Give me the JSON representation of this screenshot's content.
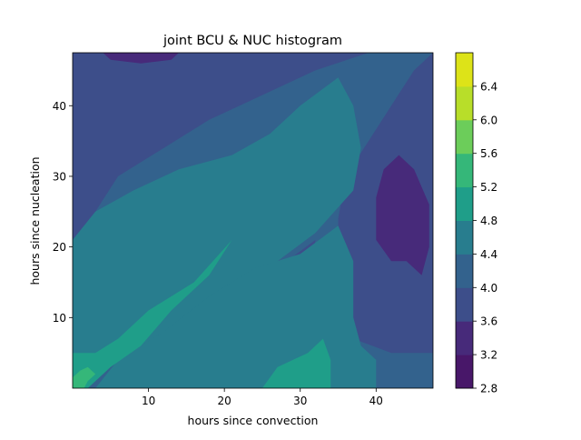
{
  "chart_data": {
    "type": "heatmap",
    "subtype": "filled-contour",
    "title": "joint BCU & NUC histogram",
    "xlabel": "hours since convection",
    "ylabel": "hours since nucleation",
    "xlim": [
      0,
      47.5
    ],
    "ylim": [
      0,
      47.5
    ],
    "xticks": [
      10,
      20,
      30,
      40
    ],
    "yticks": [
      10,
      20,
      30,
      40
    ],
    "colormap": "viridis",
    "levels": [
      2.8,
      3.2,
      3.6,
      4.0,
      4.4,
      4.8,
      5.2,
      5.6,
      6.0,
      6.4
    ],
    "level_colors": [
      "#481769",
      "#472a7a",
      "#3d4e8a",
      "#33628d",
      "#287d8e",
      "#1f9e89",
      "#35b779",
      "#6ccd5a",
      "#b8de29",
      "#dde318"
    ],
    "colorbar_ticks": [
      "2.8",
      "3.2",
      "3.6",
      "4.0",
      "4.4",
      "4.8",
      "5.2",
      "5.6",
      "6.0",
      "6.4"
    ],
    "regions": [
      {
        "band": "4.0-4.4",
        "points": [
          [
            0,
            0
          ],
          [
            47.5,
            0
          ],
          [
            47.5,
            47.5
          ],
          [
            0,
            47.5
          ]
        ]
      },
      {
        "band": "3.6-4.0",
        "points": [
          [
            0,
            47.5
          ],
          [
            39,
            47.5
          ],
          [
            32,
            45
          ],
          [
            24,
            41
          ],
          [
            18,
            38
          ],
          [
            12,
            34
          ],
          [
            6,
            30
          ],
          [
            3,
            25
          ],
          [
            0,
            21
          ]
        ]
      },
      {
        "band": "3.6-4.0",
        "points": [
          [
            47.5,
            5
          ],
          [
            47.5,
            47.5
          ],
          [
            45,
            45
          ],
          [
            42,
            40
          ],
          [
            39,
            35
          ],
          [
            36,
            30
          ],
          [
            35,
            24
          ],
          [
            35,
            18
          ],
          [
            35,
            12
          ],
          [
            37,
            7
          ],
          [
            42,
            5
          ]
        ]
      },
      {
        "band": "3.6-4.0",
        "points": [
          [
            11,
            6
          ],
          [
            15,
            9
          ],
          [
            21,
            13
          ],
          [
            27,
            17
          ],
          [
            32,
            21
          ],
          [
            31,
            15
          ],
          [
            28,
            9
          ],
          [
            22,
            5
          ],
          [
            16,
            3
          ],
          [
            12,
            3
          ]
        ]
      },
      {
        "band": "3.2-3.6",
        "points": [
          [
            40,
            21
          ],
          [
            40,
            27
          ],
          [
            41,
            31
          ],
          [
            43,
            33
          ],
          [
            45,
            31
          ],
          [
            47,
            26
          ],
          [
            47,
            20
          ],
          [
            46,
            16
          ],
          [
            44,
            18
          ],
          [
            42,
            18
          ]
        ]
      },
      {
        "band": "3.2-3.6",
        "points": [
          [
            4,
            47.5
          ],
          [
            14,
            47.5
          ],
          [
            13,
            46.5
          ],
          [
            9,
            46
          ],
          [
            5,
            46.5
          ]
        ]
      },
      {
        "band": "4.4-4.8",
        "points": [
          [
            0,
            21
          ],
          [
            3,
            25
          ],
          [
            8,
            28
          ],
          [
            14,
            31
          ],
          [
            21,
            33
          ],
          [
            26,
            36
          ],
          [
            30,
            40
          ],
          [
            35,
            44
          ],
          [
            37,
            40
          ],
          [
            38,
            34
          ],
          [
            37,
            28
          ],
          [
            32,
            22
          ],
          [
            27,
            18
          ],
          [
            22,
            14
          ],
          [
            16,
            10
          ],
          [
            11,
            6
          ],
          [
            8,
            5
          ],
          [
            4,
            4
          ],
          [
            0,
            5
          ]
        ]
      },
      {
        "band": "4.4-4.8",
        "points": [
          [
            3,
            0
          ],
          [
            6,
            4
          ],
          [
            12,
            8
          ],
          [
            18,
            13
          ],
          [
            24,
            17
          ],
          [
            30,
            19
          ],
          [
            35,
            23
          ],
          [
            37,
            18
          ],
          [
            37,
            10
          ],
          [
            38,
            6
          ],
          [
            40,
            4
          ],
          [
            40,
            0
          ]
        ]
      },
      {
        "band": "4.8-5.2",
        "points": [
          [
            0,
            0
          ],
          [
            0,
            5
          ],
          [
            3,
            5
          ],
          [
            6,
            7
          ],
          [
            10,
            11
          ],
          [
            16,
            15
          ],
          [
            21,
            21
          ],
          [
            18,
            16
          ],
          [
            13,
            11
          ],
          [
            9,
            6
          ],
          [
            5,
            3
          ],
          [
            3,
            1
          ],
          [
            2,
            0
          ]
        ]
      },
      {
        "band": "4.8-5.2",
        "points": [
          [
            25,
            0
          ],
          [
            27,
            3
          ],
          [
            31,
            5
          ],
          [
            33,
            7
          ],
          [
            34,
            4
          ],
          [
            34,
            0
          ]
        ]
      },
      {
        "band": "5.2-5.6",
        "points": [
          [
            0,
            0
          ],
          [
            0,
            1.5
          ],
          [
            1,
            2.5
          ],
          [
            2,
            3
          ],
          [
            3,
            2
          ],
          [
            2,
            1
          ],
          [
            1.5,
            0
          ]
        ]
      }
    ]
  }
}
